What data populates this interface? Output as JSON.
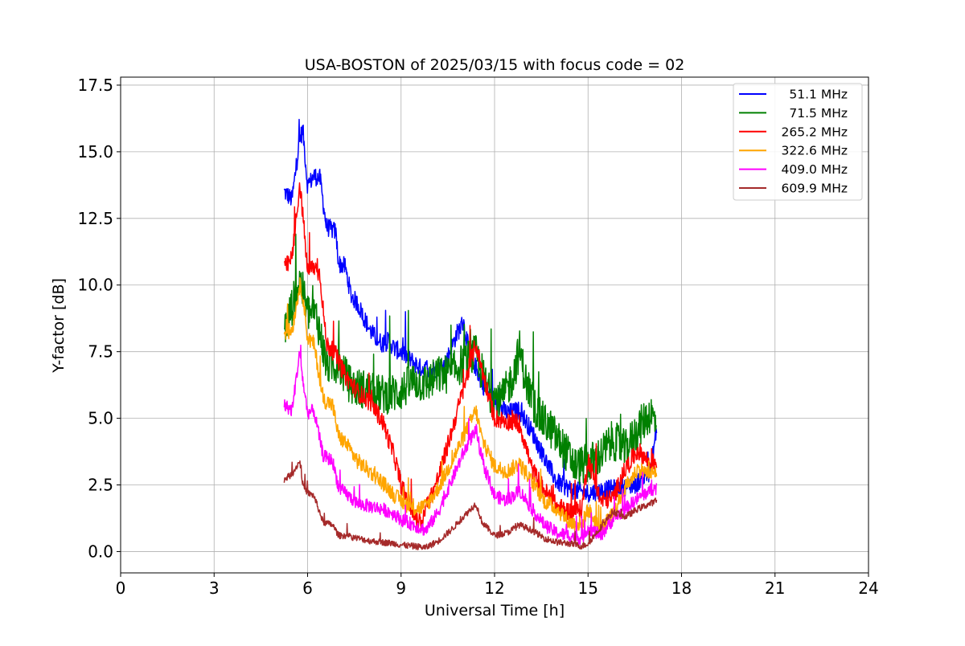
{
  "chart_data": {
    "type": "line",
    "title": "USA-BOSTON of 2025/03/15 with focus code = 02",
    "xlabel": "Universal Time [h]",
    "ylabel": "Y-factor [dB]",
    "xlim": [
      0,
      24
    ],
    "ylim": [
      -0.8,
      17.8
    ],
    "xticks": [
      0,
      3,
      6,
      9,
      12,
      15,
      18,
      21,
      24
    ],
    "yticks": [
      0.0,
      2.5,
      5.0,
      7.5,
      10.0,
      12.5,
      15.0,
      17.5
    ],
    "xtick_labels": [
      "0",
      "3",
      "6",
      "9",
      "12",
      "15",
      "18",
      "21",
      "24"
    ],
    "ytick_labels": [
      "0.0",
      "2.5",
      "5.0",
      "7.5",
      "10.0",
      "12.5",
      "15.0",
      "17.5"
    ],
    "grid": true,
    "legend_position": "top-right",
    "series": [
      {
        "name": "51.1 MHz",
        "color": "#0000ff",
        "noise": 0.35,
        "x": [
          5.25,
          5.5,
          5.75,
          5.85,
          6.0,
          6.2,
          6.4,
          6.6,
          6.9,
          7.0,
          7.2,
          7.4,
          7.6,
          7.8,
          8.0,
          8.2,
          8.4,
          8.6,
          8.8,
          9.0,
          9.3,
          9.6,
          10.0,
          10.4,
          10.8,
          11.0,
          11.2,
          11.4,
          11.6,
          12.0,
          12.4,
          12.8,
          13.2,
          13.6,
          14.0,
          14.5,
          15.0,
          15.5,
          16.0,
          16.5,
          17.0,
          17.2
        ],
        "y": [
          13.5,
          13.2,
          15.5,
          15.8,
          13.7,
          14.1,
          14.0,
          12.2,
          12.0,
          10.8,
          10.7,
          9.6,
          9.3,
          8.8,
          8.3,
          8.0,
          7.8,
          7.9,
          7.6,
          7.5,
          7.2,
          6.9,
          6.8,
          7.0,
          8.2,
          8.6,
          7.4,
          6.9,
          6.3,
          5.6,
          5.2,
          5.3,
          4.5,
          3.5,
          2.6,
          2.3,
          2.2,
          2.3,
          2.4,
          2.5,
          3.0,
          4.6
        ]
      },
      {
        "name": "71.5 MHz",
        "color": "#008000",
        "noise": 0.75,
        "x": [
          5.25,
          5.5,
          5.75,
          6.0,
          6.3,
          6.6,
          7.0,
          7.4,
          7.8,
          8.2,
          8.6,
          9.0,
          9.4,
          9.8,
          10.2,
          10.6,
          11.0,
          11.4,
          11.8,
          12.2,
          12.6,
          12.8,
          13.0,
          13.4,
          13.8,
          14.2,
          14.6,
          15.0,
          15.4,
          15.8,
          16.2,
          16.6,
          17.0,
          17.2
        ],
        "y": [
          8.3,
          9.2,
          10.2,
          9.0,
          8.8,
          7.0,
          7.0,
          6.2,
          6.1,
          5.9,
          5.9,
          6.0,
          6.4,
          6.3,
          6.6,
          6.7,
          7.1,
          7.4,
          6.0,
          5.6,
          6.6,
          7.6,
          6.4,
          5.1,
          4.6,
          3.9,
          3.2,
          3.3,
          3.6,
          4.2,
          3.8,
          4.6,
          5.2,
          4.8
        ]
      },
      {
        "name": "265.2 MHz",
        "color": "#ff0000",
        "noise": 0.35,
        "x": [
          5.25,
          5.5,
          5.75,
          5.85,
          6.0,
          6.2,
          6.4,
          6.6,
          6.9,
          7.2,
          7.6,
          8.0,
          8.4,
          8.8,
          9.0,
          9.4,
          9.6,
          9.8,
          10.2,
          10.6,
          11.0,
          11.4,
          11.6,
          12.0,
          12.4,
          12.8,
          13.2,
          13.6,
          14.0,
          14.4,
          14.8,
          15.0,
          15.4,
          15.8,
          16.2,
          16.6,
          17.0,
          17.2
        ],
        "y": [
          10.6,
          11.0,
          13.8,
          12.6,
          10.5,
          10.7,
          10.4,
          7.8,
          7.4,
          6.6,
          6.0,
          5.6,
          4.9,
          3.5,
          2.5,
          1.4,
          1.0,
          1.6,
          2.8,
          4.4,
          6.1,
          7.8,
          6.8,
          5.0,
          4.9,
          4.8,
          3.1,
          2.3,
          1.7,
          1.5,
          1.6,
          3.5,
          1.9,
          2.0,
          3.1,
          3.8,
          3.3,
          3.4
        ]
      },
      {
        "name": "322.6 MHz",
        "color": "#ffa500",
        "noise": 0.3,
        "x": [
          5.25,
          5.5,
          5.75,
          5.85,
          6.0,
          6.2,
          6.5,
          6.8,
          7.0,
          7.2,
          7.6,
          8.0,
          8.4,
          8.8,
          9.0,
          9.4,
          9.8,
          10.2,
          10.6,
          11.0,
          11.4,
          11.6,
          12.0,
          12.4,
          12.8,
          13.2,
          13.6,
          14.0,
          14.4,
          14.8,
          15.0,
          15.4,
          15.8,
          16.2,
          16.6,
          17.0,
          17.2
        ],
        "y": [
          8.2,
          8.3,
          10.0,
          9.6,
          8.0,
          7.8,
          5.7,
          5.5,
          4.3,
          4.1,
          3.4,
          3.0,
          2.6,
          2.1,
          1.9,
          1.6,
          1.7,
          2.4,
          3.3,
          4.3,
          5.3,
          4.2,
          3.2,
          3.0,
          3.3,
          2.6,
          1.9,
          1.6,
          1.1,
          1.0,
          1.6,
          0.8,
          1.4,
          2.4,
          3.1,
          2.9,
          3.0
        ]
      },
      {
        "name": "409.0 MHz",
        "color": "#ff00ff",
        "noise": 0.25,
        "x": [
          5.25,
          5.5,
          5.75,
          5.85,
          6.0,
          6.2,
          6.5,
          6.8,
          7.0,
          7.2,
          7.6,
          8.0,
          8.4,
          8.8,
          9.0,
          9.4,
          9.8,
          10.2,
          10.6,
          11.0,
          11.4,
          11.6,
          12.0,
          12.4,
          12.8,
          13.2,
          13.6,
          14.0,
          14.4,
          14.8,
          15.0,
          15.4,
          15.8,
          16.2,
          16.6,
          17.0,
          17.2
        ],
        "y": [
          5.5,
          5.3,
          7.5,
          6.4,
          5.2,
          5.3,
          3.6,
          3.4,
          2.4,
          2.2,
          1.8,
          1.7,
          1.6,
          1.4,
          1.2,
          1.0,
          0.8,
          1.5,
          2.6,
          3.7,
          4.6,
          3.4,
          2.1,
          1.9,
          2.3,
          1.6,
          1.0,
          0.7,
          0.6,
          0.5,
          0.9,
          0.6,
          1.2,
          1.6,
          2.0,
          2.3,
          2.4
        ]
      },
      {
        "name": "609.9 MHz",
        "color": "#a52a2a",
        "noise": 0.12,
        "x": [
          5.25,
          5.5,
          5.75,
          5.85,
          6.0,
          6.2,
          6.5,
          6.8,
          7.0,
          7.2,
          7.6,
          8.0,
          8.4,
          8.8,
          9.0,
          9.4,
          9.8,
          10.2,
          10.6,
          11.0,
          11.4,
          11.6,
          12.0,
          12.4,
          12.8,
          13.2,
          13.6,
          14.0,
          14.4,
          14.8,
          15.0,
          15.4,
          15.8,
          16.2,
          16.6,
          17.0,
          17.2
        ],
        "y": [
          2.7,
          2.9,
          3.4,
          2.5,
          2.2,
          2.1,
          1.1,
          1.0,
          0.6,
          0.6,
          0.5,
          0.4,
          0.35,
          0.3,
          0.25,
          0.2,
          0.15,
          0.4,
          0.8,
          1.3,
          1.8,
          1.1,
          0.6,
          0.7,
          1.0,
          0.8,
          0.5,
          0.35,
          0.3,
          0.2,
          0.3,
          0.9,
          1.5,
          1.3,
          1.6,
          1.8,
          1.9
        ]
      }
    ]
  }
}
